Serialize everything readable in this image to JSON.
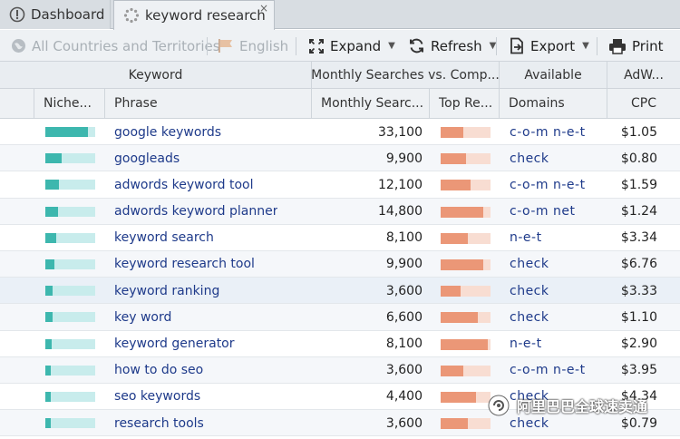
{
  "tabs": [
    {
      "label": "Dashboard",
      "icon": "dashboard-icon"
    },
    {
      "label": "keyword research",
      "icon": "spinner-icon",
      "close": "×"
    }
  ],
  "toolbar": {
    "countries": "All Countries and Territories",
    "language": "English",
    "expand": "Expand",
    "refresh": "Refresh",
    "export": "Export",
    "print": "Print"
  },
  "header_groups": {
    "keyword": "Keyword",
    "monthly_vs": "Monthly Searches vs. Comp...",
    "available": "Available",
    "adwords": "AdW..."
  },
  "columns": {
    "niche": "Niche...",
    "phrase": "Phrase",
    "monthly": "Monthly Searc...",
    "top": "Top Re...",
    "domains": "Domains",
    "cpc": "CPC"
  },
  "rows": [
    {
      "niche": 0.85,
      "phrase": "google keywords",
      "monthly": "33,100",
      "top": 0.45,
      "domains": "c-o-m n-e-t",
      "cpc": "$1.05"
    },
    {
      "niche": 0.32,
      "phrase": "googleads",
      "monthly": "9,900",
      "top": 0.5,
      "domains": "check",
      "cpc": "$0.80"
    },
    {
      "niche": 0.28,
      "phrase": "adwords keyword tool",
      "monthly": "12,100",
      "top": 0.6,
      "domains": "c-o-m n-e-t",
      "cpc": "$1.59"
    },
    {
      "niche": 0.26,
      "phrase": "adwords keyword planner",
      "monthly": "14,800",
      "top": 0.85,
      "domains": "c-o-m net",
      "cpc": "$1.24"
    },
    {
      "niche": 0.22,
      "phrase": "keyword search",
      "monthly": "8,100",
      "top": 0.55,
      "domains": "n-e-t",
      "cpc": "$3.34"
    },
    {
      "niche": 0.18,
      "phrase": "keyword research tool",
      "monthly": "9,900",
      "top": 0.85,
      "domains": "check",
      "cpc": "$6.76"
    },
    {
      "niche": 0.14,
      "phrase": "keyword ranking",
      "monthly": "3,600",
      "top": 0.4,
      "domains": "check",
      "cpc": "$3.33"
    },
    {
      "niche": 0.14,
      "phrase": "key word",
      "monthly": "6,600",
      "top": 0.75,
      "domains": "check",
      "cpc": "$1.10"
    },
    {
      "niche": 0.12,
      "phrase": "keyword generator",
      "monthly": "8,100",
      "top": 0.95,
      "domains": "n-e-t",
      "cpc": "$2.90"
    },
    {
      "niche": 0.1,
      "phrase": "how to do seo",
      "monthly": "3,600",
      "top": 0.45,
      "domains": "c-o-m n-e-t",
      "cpc": "$3.95"
    },
    {
      "niche": 0.1,
      "phrase": "seo keywords",
      "monthly": "4,400",
      "top": 0.7,
      "domains": "check",
      "cpc": "$4.34"
    },
    {
      "niche": 0.1,
      "phrase": "research tools",
      "monthly": "3,600",
      "top": 0.55,
      "domains": "check",
      "cpc": "$0.79"
    }
  ],
  "watermark": "阿里巴巴全球速卖通",
  "colors": {
    "niche_fill": "#3db7ae",
    "niche_track": "#c8ecec",
    "top_fill": "#eb9777",
    "top_track": "#f8ddd2",
    "link": "#1e3a8a"
  }
}
